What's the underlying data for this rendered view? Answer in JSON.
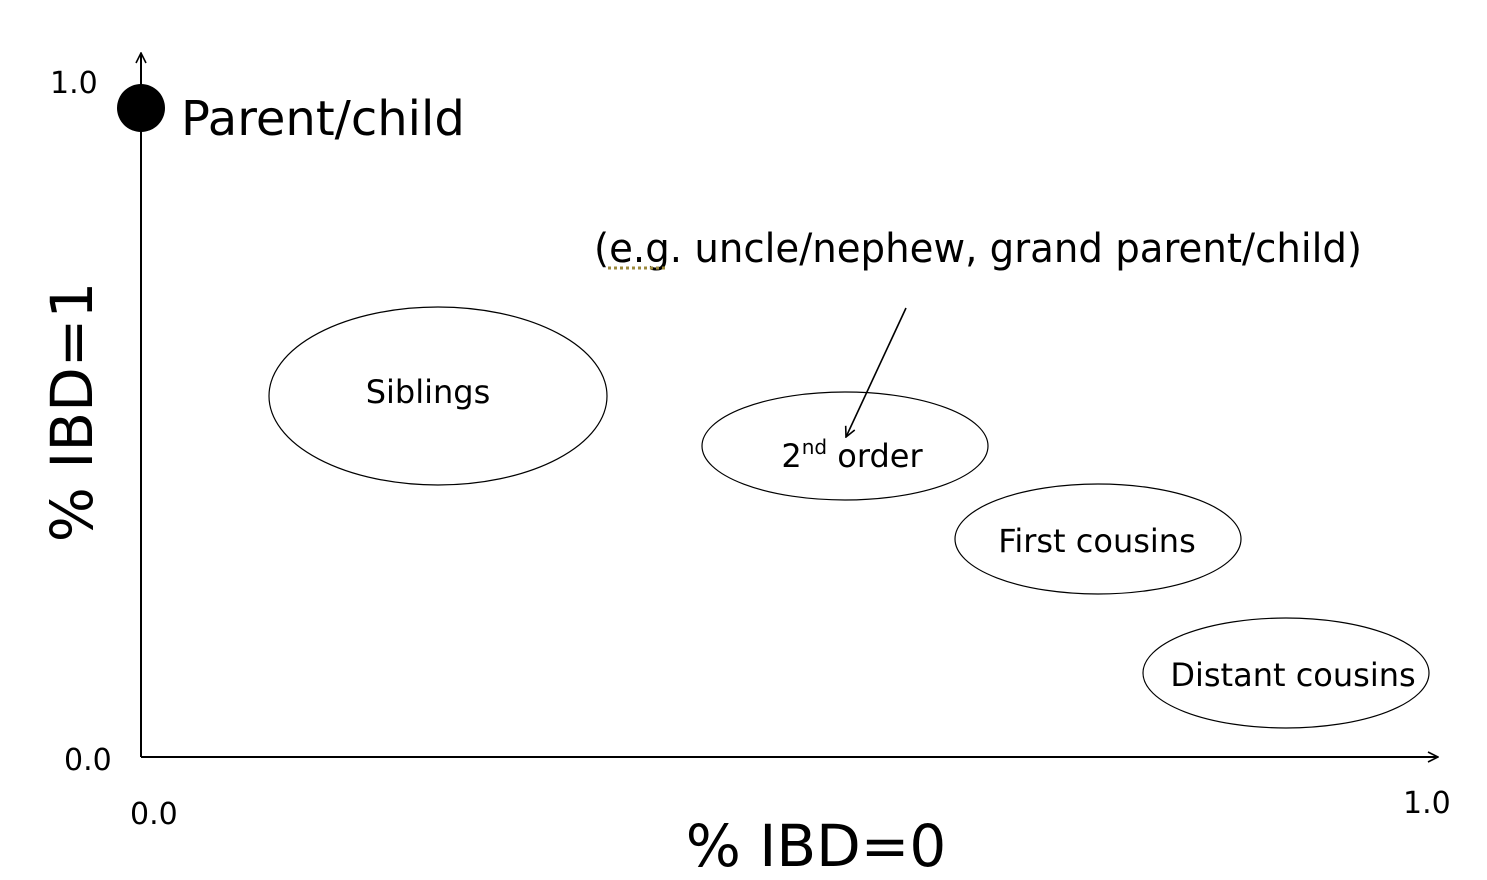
{
  "axes": {
    "y_tick_top": "1.0",
    "y_tick_bottom": "0.0",
    "x_tick_left": "0.0",
    "x_tick_right": "1.0",
    "x_title": "% IBD=0",
    "y_title": "% IBD=1"
  },
  "points": {
    "parent_child": "Parent/child"
  },
  "groups": {
    "siblings": "Siblings",
    "second_order_base": "2",
    "second_order_sup": "nd",
    "second_order_rest": " order",
    "first_cousins": "First cousins",
    "distant_cousins": "Distant cousins"
  },
  "note": {
    "text": "(e.g. uncle/nephew, grand parent/child)"
  },
  "colors": {
    "stroke": "#000000",
    "underline": "#9c8a3c",
    "background": "#ffffff"
  }
}
